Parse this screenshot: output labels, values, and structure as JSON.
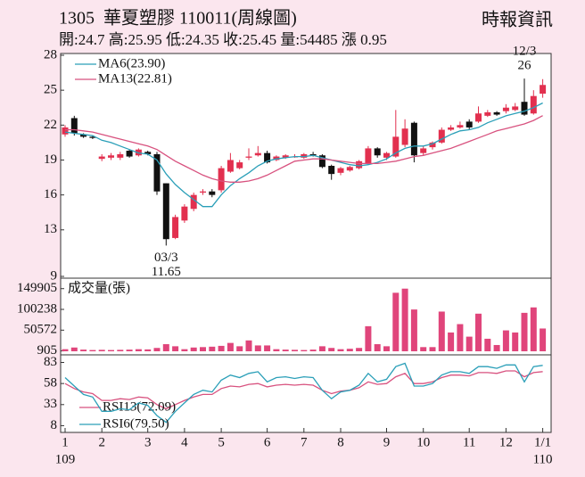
{
  "header": {
    "title": "1305  華夏塑膠 110011(周線圖)",
    "source": "時報資訊",
    "quote": "開:24.7 高:25.95 低:24.35 收:25.45 量:54485 漲 0.95"
  },
  "chart_data": [
    {
      "type": "candlestick",
      "categories": [
        "1",
        null,
        null,
        null,
        "2",
        null,
        null,
        null,
        null,
        "3",
        null,
        null,
        null,
        "4",
        null,
        null,
        null,
        "5",
        null,
        null,
        null,
        null,
        "6",
        null,
        null,
        null,
        "7",
        null,
        null,
        null,
        "8",
        null,
        null,
        null,
        null,
        "9",
        null,
        null,
        null,
        "10",
        null,
        null,
        null,
        null,
        "11",
        null,
        null,
        null,
        "12",
        null,
        null,
        null,
        "1/1"
      ],
      "x_sub_labels": [
        "109",
        null,
        null,
        null,
        null,
        null,
        null,
        null,
        null,
        null,
        null,
        null,
        null,
        null,
        null,
        null,
        null,
        null,
        null,
        null,
        null,
        null,
        null,
        null,
        null,
        null,
        null,
        null,
        null,
        null,
        null,
        null,
        null,
        null,
        null,
        null,
        null,
        null,
        null,
        null,
        null,
        null,
        null,
        null,
        null,
        null,
        null,
        null,
        null,
        null,
        null,
        null,
        "110"
      ],
      "open": [
        21.2,
        22.6,
        21.2,
        21.0,
        19.1,
        19.2,
        19.2,
        19.8,
        19.4,
        19.7,
        19.5,
        17.0,
        12.3,
        13.8,
        14.8,
        16.2,
        16.3,
        16.4,
        18.0,
        18.3,
        19.2,
        19.4,
        19.6,
        19.0,
        19.2,
        19.3,
        19.2,
        19.5,
        19.4,
        18.5,
        17.9,
        18.1,
        18.3,
        18.7,
        20.0,
        19.2,
        19.3,
        20.3,
        22.2,
        19.6,
        20.1,
        20.5,
        21.6,
        21.8,
        22.3,
        22.3,
        22.8,
        23.1,
        23.2,
        23.3,
        24.0,
        23.0,
        24.7
      ],
      "high": [
        22.0,
        22.8,
        21.3,
        21.1,
        19.5,
        19.6,
        19.7,
        19.9,
        20.0,
        19.8,
        19.7,
        17.0,
        14.3,
        15.2,
        16.2,
        16.5,
        16.5,
        18.5,
        19.6,
        19.0,
        20.0,
        20.2,
        19.8,
        19.4,
        19.5,
        19.5,
        19.6,
        19.7,
        19.5,
        18.6,
        18.4,
        18.5,
        19.0,
        20.2,
        20.1,
        19.7,
        23.3,
        22.5,
        22.3,
        20.2,
        20.6,
        21.8,
        22.0,
        22.3,
        22.5,
        23.6,
        23.3,
        23.2,
        23.8,
        23.9,
        26,
        25.0,
        25.95
      ],
      "low": [
        21.0,
        21.1,
        20.9,
        20.8,
        18.9,
        19.0,
        19.0,
        19.2,
        19.3,
        19.4,
        16.0,
        11.65,
        12.2,
        13.6,
        14.6,
        16.0,
        15.8,
        16.2,
        17.9,
        18.2,
        19.0,
        19.3,
        18.7,
        18.9,
        19.1,
        19.2,
        19.1,
        19.3,
        18.3,
        17.3,
        17.7,
        18.0,
        18.2,
        18.6,
        19.2,
        19.0,
        19.2,
        20.1,
        18.8,
        19.4,
        19.9,
        20.4,
        21.5,
        21.7,
        21.6,
        22.2,
        22.7,
        22.8,
        23.0,
        23.2,
        22.8,
        22.9,
        24.35
      ],
      "close": [
        21.8,
        21.3,
        21.0,
        20.9,
        19.3,
        19.4,
        19.5,
        19.3,
        19.9,
        19.5,
        16.3,
        12.2,
        14.1,
        15.0,
        16.0,
        16.3,
        16.0,
        18.3,
        19.0,
        18.8,
        19.3,
        19.6,
        18.8,
        19.3,
        19.4,
        19.3,
        19.5,
        19.4,
        18.4,
        17.8,
        18.3,
        18.4,
        18.9,
        20.0,
        19.4,
        19.6,
        21.0,
        21.7,
        19.4,
        20.0,
        20.5,
        21.6,
        21.8,
        22.0,
        21.8,
        23.0,
        23.1,
        22.9,
        23.5,
        23.6,
        22.9,
        24.5,
        25.45
      ],
      "up_color": "#e2304f",
      "down_color": "#111111",
      "series": [
        {
          "name": "MA6(23.90)",
          "color": "#2a9fb8",
          "values": [
            21.4,
            21.3,
            21.2,
            21.1,
            20.7,
            20.5,
            20.2,
            19.9,
            19.6,
            19.5,
            19.0,
            17.8,
            16.9,
            16.2,
            15.6,
            15.0,
            15.0,
            16.0,
            16.8,
            17.4,
            17.9,
            18.5,
            18.9,
            19.1,
            19.2,
            19.3,
            19.3,
            19.4,
            19.2,
            19.0,
            18.8,
            18.6,
            18.5,
            18.6,
            18.8,
            19.1,
            19.6,
            20.0,
            20.2,
            20.2,
            20.4,
            20.8,
            21.2,
            21.5,
            21.6,
            21.8,
            22.2,
            22.5,
            22.8,
            23.0,
            23.2,
            23.5,
            23.9
          ]
        },
        {
          "name": "MA13(22.81)",
          "color": "#d8527f",
          "values": [
            21.6,
            21.6,
            21.5,
            21.4,
            21.2,
            21.0,
            20.8,
            20.6,
            20.4,
            20.2,
            19.9,
            19.4,
            18.9,
            18.5,
            18.1,
            17.7,
            17.4,
            17.2,
            17.1,
            17.1,
            17.2,
            17.4,
            17.7,
            18.1,
            18.5,
            18.9,
            19.0,
            19.1,
            19.1,
            19.0,
            18.9,
            18.8,
            18.7,
            18.7,
            18.7,
            18.8,
            18.9,
            19.1,
            19.3,
            19.4,
            19.6,
            19.8,
            20.0,
            20.3,
            20.6,
            20.9,
            21.2,
            21.5,
            21.7,
            21.9,
            22.1,
            22.4,
            22.81
          ]
        }
      ],
      "annotations": [
        {
          "date": "03/3",
          "value": 11.65
        },
        {
          "date": "12/3",
          "value": 26
        }
      ],
      "ylim": [
        9,
        28
      ],
      "yticks": [
        28,
        25,
        22,
        19,
        16,
        13,
        9
      ]
    },
    {
      "type": "bar",
      "title": "成交量(張)",
      "color": "#e0457b",
      "values": [
        5000,
        9000,
        4000,
        3000,
        3500,
        3000,
        3500,
        4000,
        5000,
        4500,
        8000,
        17000,
        12000,
        5000,
        9000,
        10000,
        11000,
        13000,
        20000,
        12000,
        26000,
        14000,
        14000,
        5000,
        4000,
        3500,
        3000,
        4000,
        12000,
        8000,
        5000,
        6000,
        8000,
        60000,
        17000,
        12000,
        140000,
        149905,
        100000,
        10000,
        10000,
        95000,
        45000,
        65000,
        35000,
        90000,
        30000,
        15000,
        50000,
        45000,
        92000,
        105000,
        54485
      ],
      "ylim": [
        0,
        160000
      ],
      "yticks": [
        149905,
        100238,
        50572,
        905
      ]
    },
    {
      "type": "line",
      "series": [
        {
          "name": "RSI13(72.09)",
          "color": "#d8527f",
          "values": [
            58,
            52,
            48,
            46,
            38,
            38,
            40,
            39,
            42,
            41,
            33,
            28,
            33,
            38,
            42,
            45,
            45,
            52,
            55,
            54,
            57,
            58,
            54,
            56,
            57,
            56,
            57,
            56,
            50,
            46,
            49,
            50,
            53,
            60,
            57,
            58,
            66,
            70,
            58,
            58,
            60,
            65,
            68,
            68,
            67,
            71,
            71,
            70,
            73,
            73,
            66,
            71,
            72.09
          ]
        },
        {
          "name": "RSI6(79.50)",
          "color": "#2a9fb8",
          "values": [
            65,
            55,
            45,
            42,
            25,
            25,
            28,
            27,
            35,
            32,
            20,
            12,
            25,
            35,
            45,
            50,
            48,
            62,
            68,
            65,
            70,
            72,
            60,
            65,
            66,
            64,
            66,
            65,
            50,
            40,
            48,
            50,
            56,
            70,
            60,
            63,
            78,
            82,
            55,
            55,
            58,
            68,
            72,
            72,
            70,
            78,
            78,
            76,
            80,
            80,
            60,
            78,
            79.5
          ]
        }
      ],
      "ylim": [
        0,
        92
      ],
      "yticks": [
        83,
        58,
        33,
        8
      ]
    }
  ]
}
